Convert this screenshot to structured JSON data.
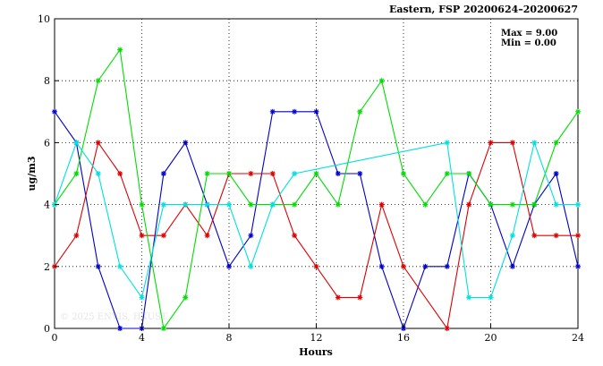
{
  "chart_data": {
    "type": "line",
    "title": "Eastern, FSP 20200624–20200627",
    "xlabel": "Hours",
    "ylabel": "ug/m3",
    "xlim": [
      0,
      24
    ],
    "ylim": [
      0,
      10
    ],
    "xticks": [
      0,
      4,
      8,
      12,
      16,
      20,
      24
    ],
    "yticks": [
      0,
      2,
      4,
      6,
      8,
      10
    ],
    "grid": true,
    "stats": {
      "max_label": "Max = 9.00",
      "min_label": "Min = 0.00"
    },
    "watermark": "© 2025  ENVIS, HKUST",
    "series": [
      {
        "color": "#0000cc",
        "x": [
          0,
          1,
          2,
          3,
          4,
          5,
          6,
          7,
          8,
          9,
          10,
          11,
          12,
          13,
          14,
          15,
          16,
          17,
          18,
          19,
          20,
          21,
          22,
          23,
          24
        ],
        "y": [
          7,
          6,
          2,
          0,
          0,
          5,
          6,
          4,
          2,
          3,
          7,
          7,
          7,
          5,
          5,
          2,
          0,
          2,
          2,
          5,
          4,
          2,
          4,
          5,
          2
        ]
      },
      {
        "color": "#dd0000",
        "x": [
          0,
          1,
          2,
          3,
          4,
          5,
          6,
          7,
          8,
          9,
          10,
          11,
          12,
          13,
          14,
          15,
          16,
          18,
          19,
          20,
          21,
          22,
          23,
          24
        ],
        "y": [
          2,
          3,
          6,
          5,
          3,
          3,
          4,
          3,
          5,
          5,
          5,
          3,
          2,
          1,
          1,
          4,
          2,
          0,
          4,
          6,
          6,
          3,
          3,
          3
        ]
      },
      {
        "color": "#00dd00",
        "x": [
          0,
          1,
          2,
          3,
          4,
          5,
          6,
          7,
          8,
          9,
          10,
          11,
          12,
          13,
          14,
          15,
          16,
          17,
          18,
          19,
          20,
          21,
          22,
          23,
          24
        ],
        "y": [
          4,
          5,
          8,
          9,
          4,
          0,
          1,
          5,
          5,
          4,
          4,
          4,
          5,
          4,
          7,
          8,
          5,
          4,
          5,
          5,
          4,
          4,
          4,
          6,
          7
        ]
      },
      {
        "color": "#00e0e0",
        "x": [
          0,
          1,
          2,
          3,
          4,
          5,
          6,
          7,
          8,
          9,
          10,
          11,
          18,
          19,
          20,
          21,
          22,
          23,
          24
        ],
        "y": [
          4,
          6,
          5,
          2,
          1,
          4,
          4,
          4,
          4,
          2,
          4,
          5,
          6,
          1,
          1,
          3,
          6,
          4,
          4
        ]
      }
    ]
  }
}
